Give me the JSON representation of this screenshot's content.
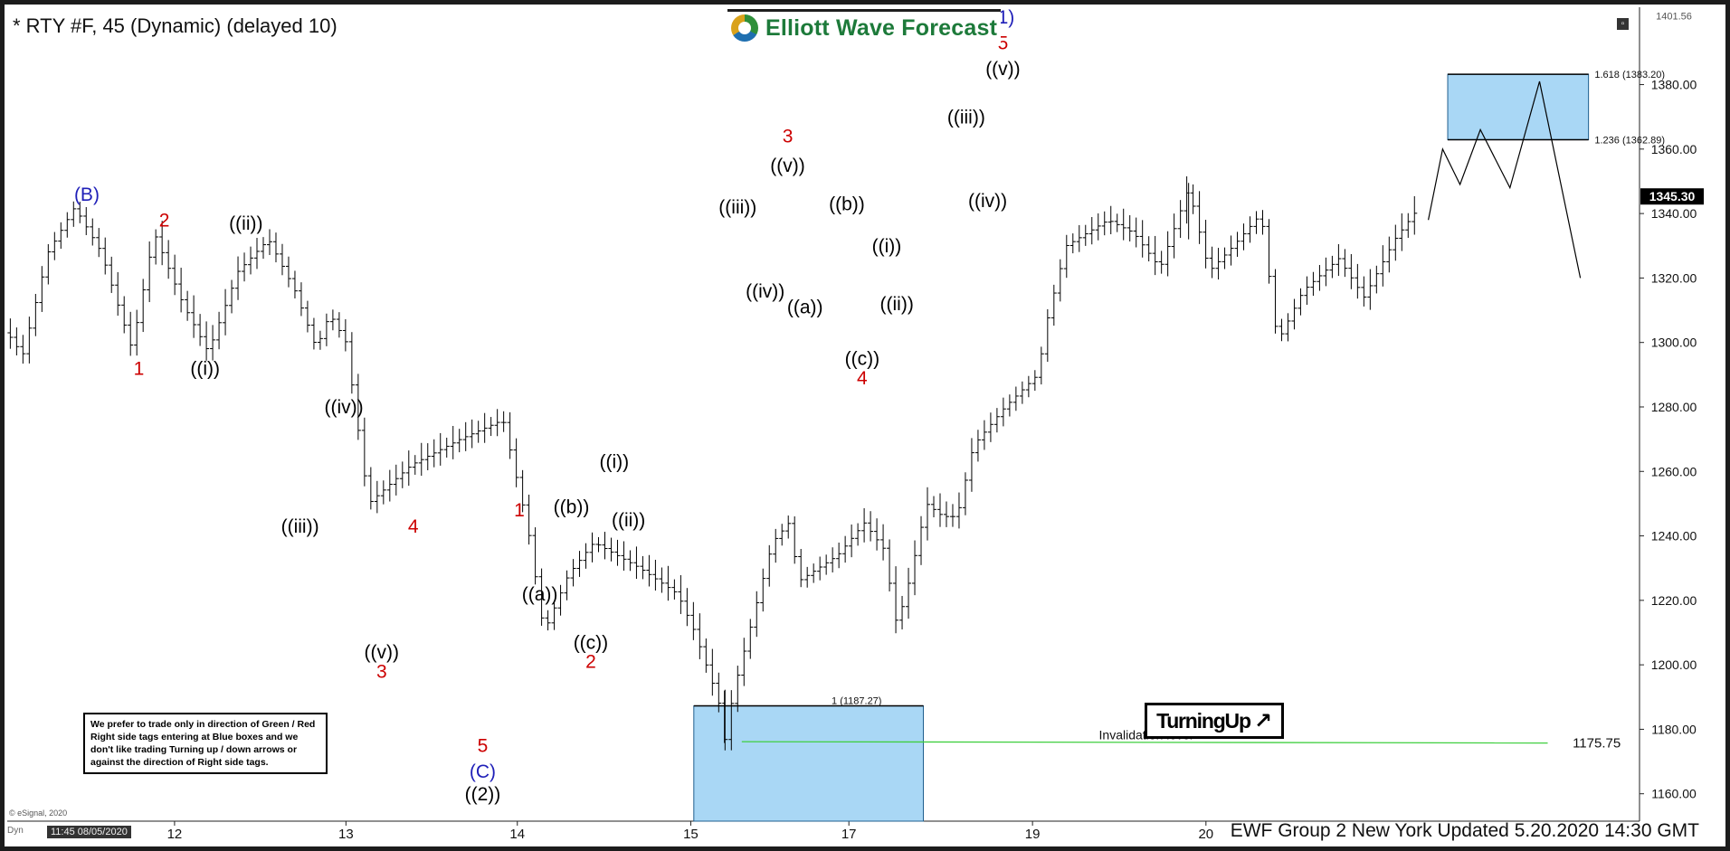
{
  "header": {
    "instrument": "* RTY #F, 45 (Dynamic) (delayed 10)",
    "brand": "Elliott Wave Forecast"
  },
  "footer": {
    "update_text": "EWF Group 2 New York Updated 5.20.2020 14:30 GMT",
    "copyright": "© eSignal, 2020",
    "dyn_label": "Dyn",
    "cursor_time": "11:45 08/05/2020"
  },
  "note": "We prefer to trade only in direction of Green / Red Right side tags entering at Blue boxes and we don't like trading Turning up / down arrows or against the direction of Right side tags.",
  "badge": {
    "text": "TurningUp",
    "arrow": "↗"
  },
  "colors": {
    "red_label": "#cc0000",
    "blue_label": "#1f1fb8",
    "box_fill": "#a9d7f5",
    "box_stroke": "#1f5f8f",
    "invalidation_line": "#3fcf3f"
  },
  "chart_data": {
    "type": "bar",
    "title": "* RTY #F, 45 (Dynamic) (delayed 10)",
    "x_ticks": [
      "12",
      "13",
      "14",
      "15",
      "17",
      "19",
      "20"
    ],
    "y_ticks": [
      "1160.00",
      "1180.00",
      "1200.00",
      "1220.00",
      "1240.00",
      "1260.00",
      "1280.00",
      "1300.00",
      "1320.00",
      "1340.00",
      "1360.00",
      "1380.00"
    ],
    "ylim": [
      1151.5,
      1404
    ],
    "axis_top_label": "1401.56",
    "last_price": "1345.30",
    "fib_levels": [
      {
        "label": "1.618 (1383.20)",
        "value": 1383.2
      },
      {
        "label": "1.236 (1362.89)",
        "value": 1362.89
      },
      {
        "label": "1 (1187.27)",
        "value": 1187.27
      }
    ],
    "invalidation": {
      "label": "Invalidation level",
      "value_label": "1175.75",
      "value": 1175.75
    },
    "price_path": [
      [
        0,
        1303
      ],
      [
        1.5,
        1296
      ],
      [
        4,
        1328
      ],
      [
        6.6,
        1342
      ],
      [
        9.2,
        1328
      ],
      [
        12.2,
        1298
      ],
      [
        14.4,
        1334
      ],
      [
        17.2,
        1312
      ],
      [
        19.7,
        1297
      ],
      [
        22.6,
        1322
      ],
      [
        25.6,
        1332
      ],
      [
        28.2,
        1316
      ],
      [
        30.3,
        1298
      ],
      [
        31.6,
        1309
      ],
      [
        33.2,
        1300
      ],
      [
        35.4,
        1250
      ],
      [
        39.6,
        1262
      ],
      [
        44.4,
        1270
      ],
      [
        48.6,
        1276
      ],
      [
        51.0,
        1243
      ],
      [
        52.6,
        1210
      ],
      [
        55.0,
        1228
      ],
      [
        57.5,
        1238
      ],
      [
        62.0,
        1230
      ],
      [
        65.7,
        1222
      ],
      [
        67.4,
        1210
      ],
      [
        69.7,
        1189
      ],
      [
        70.3,
        1175.75
      ],
      [
        71.2,
        1192
      ],
      [
        72.7,
        1210
      ],
      [
        75.0,
        1238
      ],
      [
        76.6,
        1244
      ],
      [
        77.6,
        1226
      ],
      [
        81.4,
        1234
      ],
      [
        84.0,
        1244
      ],
      [
        85.9,
        1236
      ],
      [
        87.2,
        1212
      ],
      [
        88.4,
        1226
      ],
      [
        90.1,
        1250
      ],
      [
        91.7,
        1246
      ],
      [
        93.1,
        1246
      ],
      [
        94.7,
        1268
      ],
      [
        97.8,
        1280
      ],
      [
        101.0,
        1290
      ],
      [
        102.0,
        1308
      ],
      [
        103.8,
        1330
      ],
      [
        107.9,
        1338
      ],
      [
        110.4,
        1334
      ],
      [
        113.0,
        1323
      ],
      [
        115.8,
        1348
      ],
      [
        117.8,
        1322
      ],
      [
        120.2,
        1330
      ],
      [
        122.9,
        1340
      ],
      [
        124.5,
        1300
      ],
      [
        127.0,
        1316
      ],
      [
        130.5,
        1326
      ],
      [
        133.0,
        1314
      ],
      [
        136.0,
        1332
      ],
      [
        138.4,
        1342
      ]
    ],
    "projection": [
      [
        139.3,
        1338
      ],
      [
        140.7,
        1360
      ],
      [
        142.4,
        1349
      ],
      [
        144.4,
        1366
      ],
      [
        147.3,
        1348
      ],
      [
        150.2,
        1381
      ],
      [
        154.2,
        1320
      ]
    ],
    "labels": [
      {
        "text": "(B)",
        "x": 7.8,
        "y": 1344,
        "color": "blue"
      },
      {
        "text": "2",
        "x": 15.4,
        "y": 1336,
        "color": "red"
      },
      {
        "text": "1",
        "x": 12.9,
        "y": 1290,
        "color": "red"
      },
      {
        "text": "((ii))",
        "x": 23.4,
        "y": 1335,
        "color": "black"
      },
      {
        "text": "((i))",
        "x": 19.4,
        "y": 1290,
        "color": "black"
      },
      {
        "text": "((iv))",
        "x": 33.0,
        "y": 1278,
        "color": "black"
      },
      {
        "text": "((iii))",
        "x": 28.7,
        "y": 1241,
        "color": "black"
      },
      {
        "text": "4",
        "x": 39.8,
        "y": 1241,
        "color": "red"
      },
      {
        "text": "((v))",
        "x": 36.7,
        "y": 1202,
        "color": "black"
      },
      {
        "text": "3",
        "x": 36.7,
        "y": 1196,
        "color": "red"
      },
      {
        "text": "1",
        "x": 50.2,
        "y": 1246,
        "color": "red"
      },
      {
        "text": "((b))",
        "x": 55.3,
        "y": 1247,
        "color": "black"
      },
      {
        "text": "((a))",
        "x": 52.2,
        "y": 1220,
        "color": "black"
      },
      {
        "text": "((c))",
        "x": 57.2,
        "y": 1205,
        "color": "black"
      },
      {
        "text": "2",
        "x": 57.2,
        "y": 1199,
        "color": "red"
      },
      {
        "text": "((i))",
        "x": 59.5,
        "y": 1261,
        "color": "black"
      },
      {
        "text": "((ii))",
        "x": 60.9,
        "y": 1243,
        "color": "black"
      },
      {
        "text": "5",
        "x": 46.6,
        "y": 1173,
        "color": "red"
      },
      {
        "text": "(C)",
        "x": 46.6,
        "y": 1165,
        "color": "blue"
      },
      {
        "text": "((2))",
        "x": 46.6,
        "y": 1158,
        "color": "black"
      },
      {
        "text": "((iii))",
        "x": 71.6,
        "y": 1340,
        "color": "black"
      },
      {
        "text": "((iv))",
        "x": 74.3,
        "y": 1314,
        "color": "black"
      },
      {
        "text": "3",
        "x": 76.5,
        "y": 1362,
        "color": "red"
      },
      {
        "text": "((v))",
        "x": 76.5,
        "y": 1353,
        "color": "black"
      },
      {
        "text": "((a))",
        "x": 78.2,
        "y": 1309,
        "color": "black"
      },
      {
        "text": "((b))",
        "x": 82.3,
        "y": 1341,
        "color": "black"
      },
      {
        "text": "((c))",
        "x": 83.8,
        "y": 1293,
        "color": "black"
      },
      {
        "text": "4",
        "x": 83.8,
        "y": 1287,
        "color": "red"
      },
      {
        "text": "((i))",
        "x": 86.2,
        "y": 1328,
        "color": "black"
      },
      {
        "text": "((ii))",
        "x": 87.2,
        "y": 1310,
        "color": "black"
      },
      {
        "text": "((iii))",
        "x": 94.0,
        "y": 1368,
        "color": "black"
      },
      {
        "text": "((iv))",
        "x": 96.1,
        "y": 1342,
        "color": "black"
      },
      {
        "text": "(1)",
        "x": 97.6,
        "y": 1399,
        "color": "blue"
      },
      {
        "text": "5",
        "x": 97.6,
        "y": 1391,
        "color": "red"
      },
      {
        "text": "((v))",
        "x": 97.6,
        "y": 1383,
        "color": "black"
      }
    ]
  }
}
